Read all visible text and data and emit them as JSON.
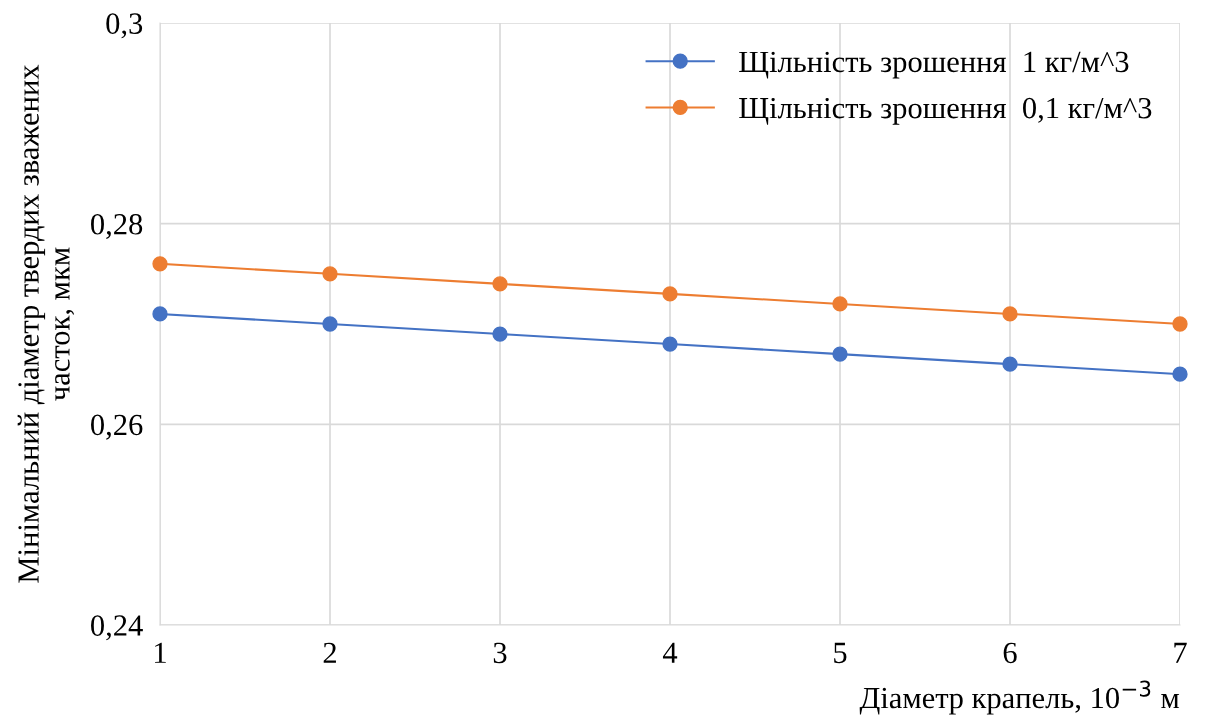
{
  "chart_data": {
    "type": "line",
    "xlabel": "Діаметр крапель, 10$^{−3}$ м",
    "ylabel": "Мінімальний діаметр твердих зважених\nчасток, мкм",
    "x": [
      1,
      2,
      3,
      4,
      5,
      6,
      7
    ],
    "series": [
      {
        "name": "Щільність зрошення  1 кг/м^3",
        "color": "#4472c4",
        "values": [
          0.271,
          0.27,
          0.269,
          0.268,
          0.267,
          0.266,
          0.265
        ]
      },
      {
        "name": "Щільність зрошення  0,1 кг/м^3",
        "color": "#ed7d31",
        "values": [
          0.276,
          0.275,
          0.274,
          0.273,
          0.272,
          0.271,
          0.27
        ]
      }
    ],
    "xlim": [
      1,
      7
    ],
    "xticks": [
      1,
      2,
      3,
      4,
      5,
      6,
      7
    ],
    "ylim": [
      0.24,
      0.3
    ],
    "yticks": [
      {
        "value": 0.24,
        "label": "0,24"
      },
      {
        "value": 0.26,
        "label": "0,26"
      },
      {
        "value": 0.28,
        "label": "0,28"
      },
      {
        "value": 0.3,
        "label": "0,3"
      }
    ],
    "grid": true,
    "legend": "top right",
    "marker": "circle",
    "line_style": "solid"
  }
}
